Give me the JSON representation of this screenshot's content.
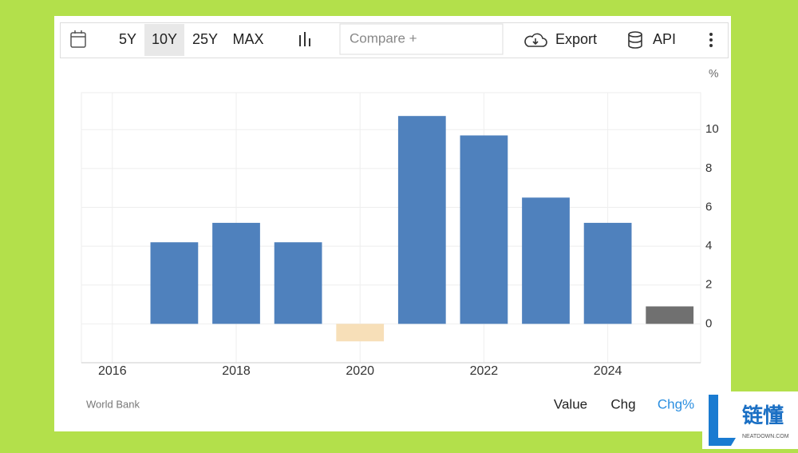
{
  "toolbar": {
    "ranges": [
      "5Y",
      "10Y",
      "25Y",
      "MAX"
    ],
    "active_range": "10Y",
    "compare": "Compare +",
    "export": "Export",
    "api": "API"
  },
  "source": "World Bank",
  "views": [
    "Value",
    "Chg",
    "Chg%"
  ],
  "active_view": "Chg%",
  "watermark": {
    "title": "链懂",
    "subtitle": "NEATDOWN.COM"
  },
  "chart_data": {
    "type": "bar",
    "unit": "%",
    "x": [
      2017,
      2018,
      2019,
      2020,
      2021,
      2022,
      2023,
      2024,
      2025
    ],
    "values": [
      4.2,
      5.2,
      4.2,
      -0.9,
      10.7,
      9.7,
      6.5,
      5.2,
      0.9
    ],
    "colors": [
      "#4f81bd",
      "#4f81bd",
      "#4f81bd",
      "#f7dfb8",
      "#4f81bd",
      "#4f81bd",
      "#4f81bd",
      "#4f81bd",
      "#707070"
    ],
    "xlim": [
      2015.5,
      2025.5
    ],
    "xticks": [
      2016,
      2018,
      2020,
      2022,
      2024
    ],
    "ylim": [
      -2,
      11.9
    ],
    "yticks": [
      0,
      2,
      4,
      6,
      8,
      10
    ],
    "grid": true
  }
}
